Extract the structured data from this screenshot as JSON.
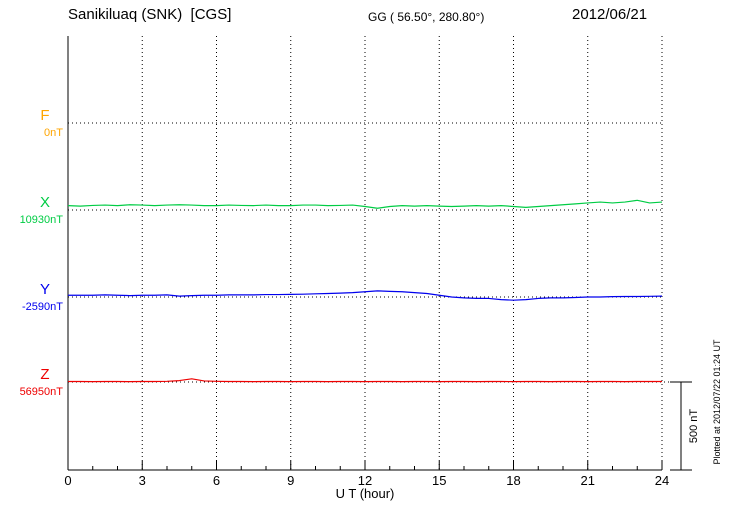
{
  "header": {
    "station_title": "Sanikiluaq (SNK)  [CGS]",
    "gg_coords": "GG ( 56.50°, 280.80°)",
    "date": "2012/06/21"
  },
  "axis": {
    "xlabel": "U T (hour)",
    "tick_labels": [
      "0",
      "3",
      "6",
      "9",
      "12",
      "15",
      "18",
      "21",
      "24"
    ]
  },
  "scale_bar": {
    "label": "500 nT",
    "span_nT": 500
  },
  "footer_note": "Plotted at 2012/07/22 01:24 UT",
  "components": [
    {
      "id": "F",
      "label": "F",
      "baseline_label": "0nT",
      "color": "#FFA500"
    },
    {
      "id": "X",
      "label": "X",
      "baseline_label": "10930nT",
      "color": "#00CC44"
    },
    {
      "id": "Y",
      "label": "Y",
      "baseline_label": "-2590nT",
      "color": "#0000EE"
    },
    {
      "id": "Z",
      "label": "Z",
      "baseline_label": "56950nT",
      "color": "#EE0000"
    }
  ],
  "chart_data": {
    "type": "line",
    "title": "Sanikiluaq (SNK) [CGS] magnetogram 2012/06/21",
    "xlabel": "U T (hour)",
    "x_range": [
      0,
      24
    ],
    "x_ticks": [
      0,
      3,
      6,
      9,
      12,
      15,
      18,
      21,
      24
    ],
    "grid": "dotted",
    "scale_bar_nT": 500,
    "x_hours": [
      0,
      0.5,
      1,
      1.5,
      2,
      2.5,
      3,
      3.5,
      4,
      4.5,
      5,
      5.5,
      6,
      6.5,
      7,
      7.5,
      8,
      8.5,
      9,
      9.5,
      10,
      10.5,
      11,
      11.5,
      12,
      12.5,
      13,
      13.5,
      14,
      14.5,
      15,
      15.5,
      16,
      16.5,
      17,
      17.5,
      18,
      18.5,
      19,
      19.5,
      20,
      20.5,
      21,
      21.5,
      22,
      22.5,
      23,
      23.5,
      24
    ],
    "series": [
      {
        "name": "F",
        "baseline_nT": 0,
        "color": "#FFA500",
        "offsets_nT": []
      },
      {
        "name": "X",
        "baseline_nT": 10930,
        "color": "#00CC44",
        "offsets_nT": [
          25,
          22,
          26,
          28,
          25,
          30,
          28,
          25,
          28,
          30,
          28,
          25,
          25,
          28,
          26,
          25,
          28,
          25,
          25,
          28,
          28,
          25,
          26,
          28,
          20,
          10,
          20,
          25,
          22,
          25,
          22,
          20,
          22,
          25,
          22,
          25,
          20,
          15,
          20,
          25,
          30,
          35,
          40,
          45,
          40,
          45,
          55,
          40,
          45
        ]
      },
      {
        "name": "Y",
        "baseline_nT": -2590,
        "color": "#0000EE",
        "offsets_nT": [
          10,
          10,
          10,
          12,
          10,
          8,
          10,
          10,
          12,
          5,
          8,
          10,
          10,
          12,
          12,
          12,
          14,
          14,
          15,
          16,
          18,
          20,
          22,
          25,
          30,
          35,
          32,
          30,
          25,
          20,
          10,
          0,
          -5,
          -8,
          -8,
          -15,
          -18,
          -15,
          -8,
          -5,
          -5,
          -3,
          0,
          0,
          2,
          3,
          3,
          4,
          5
        ]
      },
      {
        "name": "Z",
        "baseline_nT": 56950,
        "color": "#EE0000",
        "offsets_nT": [
          3,
          3,
          2,
          3,
          3,
          2,
          3,
          3,
          4,
          8,
          18,
          6,
          4,
          3,
          3,
          2,
          3,
          3,
          2,
          3,
          3,
          2,
          3,
          3,
          2,
          3,
          3,
          2,
          3,
          3,
          2,
          3,
          3,
          2,
          3,
          3,
          2,
          3,
          3,
          2,
          3,
          3,
          2,
          3,
          3,
          2,
          3,
          3,
          3
        ]
      }
    ]
  }
}
